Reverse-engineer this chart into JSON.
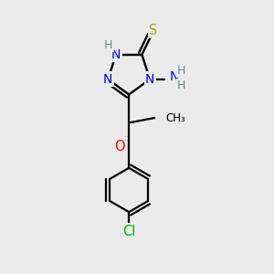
{
  "bg_color": "#ebebeb",
  "atom_colors": {
    "N": "#0000ff",
    "S": "#aaaa00",
    "O": "#ff0000",
    "Cl": "#00bb00",
    "C": "#000000",
    "H": "#5c8a8a"
  }
}
